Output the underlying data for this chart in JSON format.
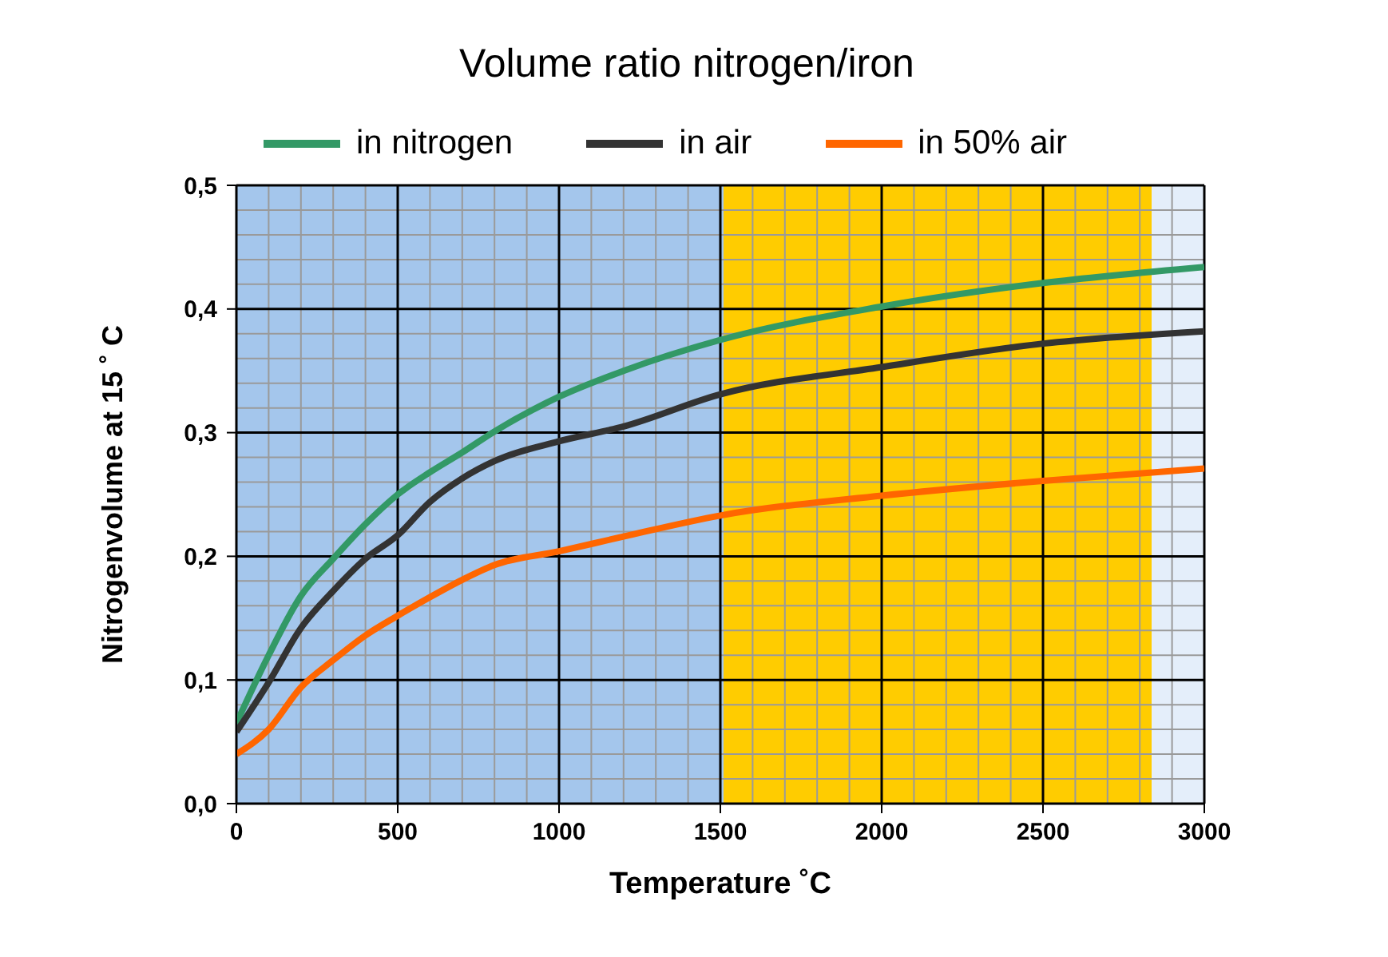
{
  "chart_data": {
    "type": "line",
    "title": "Volume ratio nitrogen/iron",
    "xlabel": "Temperature ˚C",
    "ylabel": "Nitrogenvolume at 15 ˚ C",
    "x": [
      0,
      100,
      200,
      300,
      400,
      500,
      600,
      700,
      800,
      1000,
      1200,
      1500,
      2000,
      2500,
      3000
    ],
    "series": [
      {
        "name": "in nitrogen",
        "color": "#339966",
        "values": [
          0.065,
          0.12,
          0.168,
          0.198,
          0.226,
          0.25,
          0.268,
          0.284,
          0.301,
          0.329,
          0.35,
          0.375,
          0.402,
          0.421,
          0.434
        ]
      },
      {
        "name": "in air",
        "color": "#333333",
        "values": [
          0.058,
          0.098,
          0.142,
          0.172,
          0.198,
          0.217,
          0.244,
          0.263,
          0.277,
          0.293,
          0.305,
          0.331,
          0.353,
          0.372,
          0.382
        ]
      },
      {
        "name": "in 50% air",
        "color": "#ff6600",
        "values": [
          0.04,
          0.06,
          0.094,
          0.116,
          0.136,
          0.152,
          0.167,
          0.181,
          0.193,
          0.204,
          0.216,
          0.233,
          0.249,
          0.261,
          0.271
        ]
      }
    ],
    "xlim": [
      0,
      3000
    ],
    "xticks": [
      0,
      500,
      1000,
      1500,
      2000,
      2500,
      3000
    ],
    "ylim": [
      0,
      0.5
    ],
    "yticks": [
      {
        "value": 0,
        "label": "0,0"
      },
      {
        "value": 0.1,
        "label": "0,1"
      },
      {
        "value": 0.2,
        "label": "0,2"
      },
      {
        "value": 0.3,
        "label": "0,3"
      },
      {
        "value": 0.4,
        "label": "0,4"
      },
      {
        "value": 0.5,
        "label": "0,5"
      }
    ],
    "bands": [
      {
        "axis": "x",
        "from": 0,
        "to": 1510,
        "color": "#a4c6ec"
      },
      {
        "axis": "x",
        "from": 1510,
        "to": 2837,
        "color": "#ffcc00"
      },
      {
        "axis": "x",
        "from": 2837,
        "to": 3000,
        "color": "#e4eefa"
      }
    ],
    "grid": true,
    "legend": "top",
    "marker": "none",
    "line_style": "solid"
  }
}
